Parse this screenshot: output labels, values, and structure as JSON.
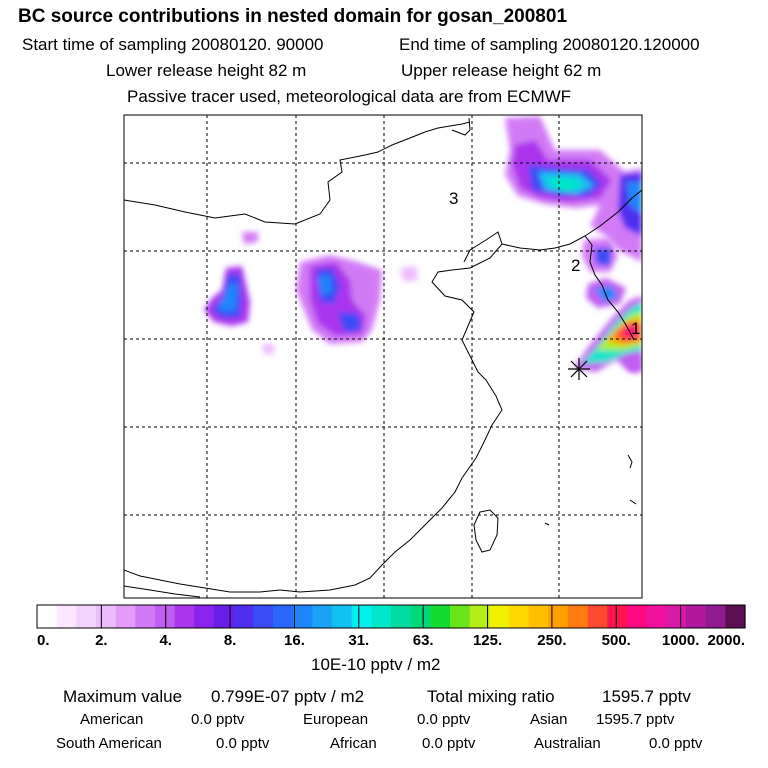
{
  "title": "BC  source contributions in nested domain for gosan_200801",
  "header": {
    "start_label": "Start time of sampling 20080120. 90000",
    "end_label": "End time of sampling 20080120.120000",
    "lower_label": "Lower release height   82 m",
    "upper_label": "Upper release height   62 m",
    "tracer_note": "Passive tracer used, meteorological data are from ECMWF"
  },
  "map": {
    "region_labels": [
      "1",
      "2",
      "3"
    ],
    "receptor_marker": "asterisk-marker"
  },
  "colorbar": {
    "tick_labels": [
      "0.",
      "2.",
      "4.",
      "8.",
      "16.",
      "31.",
      "63.",
      "125.",
      "250.",
      "500.",
      "1000.",
      "2000."
    ],
    "colors": [
      "#ffffff",
      "#fbe7ff",
      "#f4d2ff",
      "#edbcfd",
      "#e49cf8",
      "#d27af5",
      "#c15ef1",
      "#aa35ed",
      "#8a22f0",
      "#6a1de6",
      "#4f2ef0",
      "#3a4cf5",
      "#2a66fa",
      "#1e86fb",
      "#1aa3f7",
      "#12c0f2",
      "#00f0f0",
      "#00e6c8",
      "#00dca0",
      "#00d87a",
      "#14dc2e",
      "#6ae51c",
      "#b4ee14",
      "#f0f000",
      "#ffd800",
      "#ffbe00",
      "#ffa000",
      "#ff7a10",
      "#ff4a30",
      "#ff1450",
      "#ff0a80",
      "#f0129f",
      "#d81aa8",
      "#b018a0",
      "#901a90",
      "#5a1050"
    ],
    "unit": "10E-10 pptv / m2"
  },
  "stats": {
    "max_label": "Maximum value",
    "max_value": "0.799E-07 pptv / m2",
    "total_label": "Total mixing ratio",
    "total_value": "1595.7 pptv",
    "regions": [
      {
        "name": "American",
        "value": "0.0 pptv"
      },
      {
        "name": "European",
        "value": "0.0 pptv"
      },
      {
        "name": "Asian",
        "value": "1595.7 pptv"
      },
      {
        "name": "South American",
        "value": "0.0 pptv"
      },
      {
        "name": "African",
        "value": "0.0 pptv"
      },
      {
        "name": "Australian",
        "value": "0.0 pptv"
      }
    ]
  }
}
